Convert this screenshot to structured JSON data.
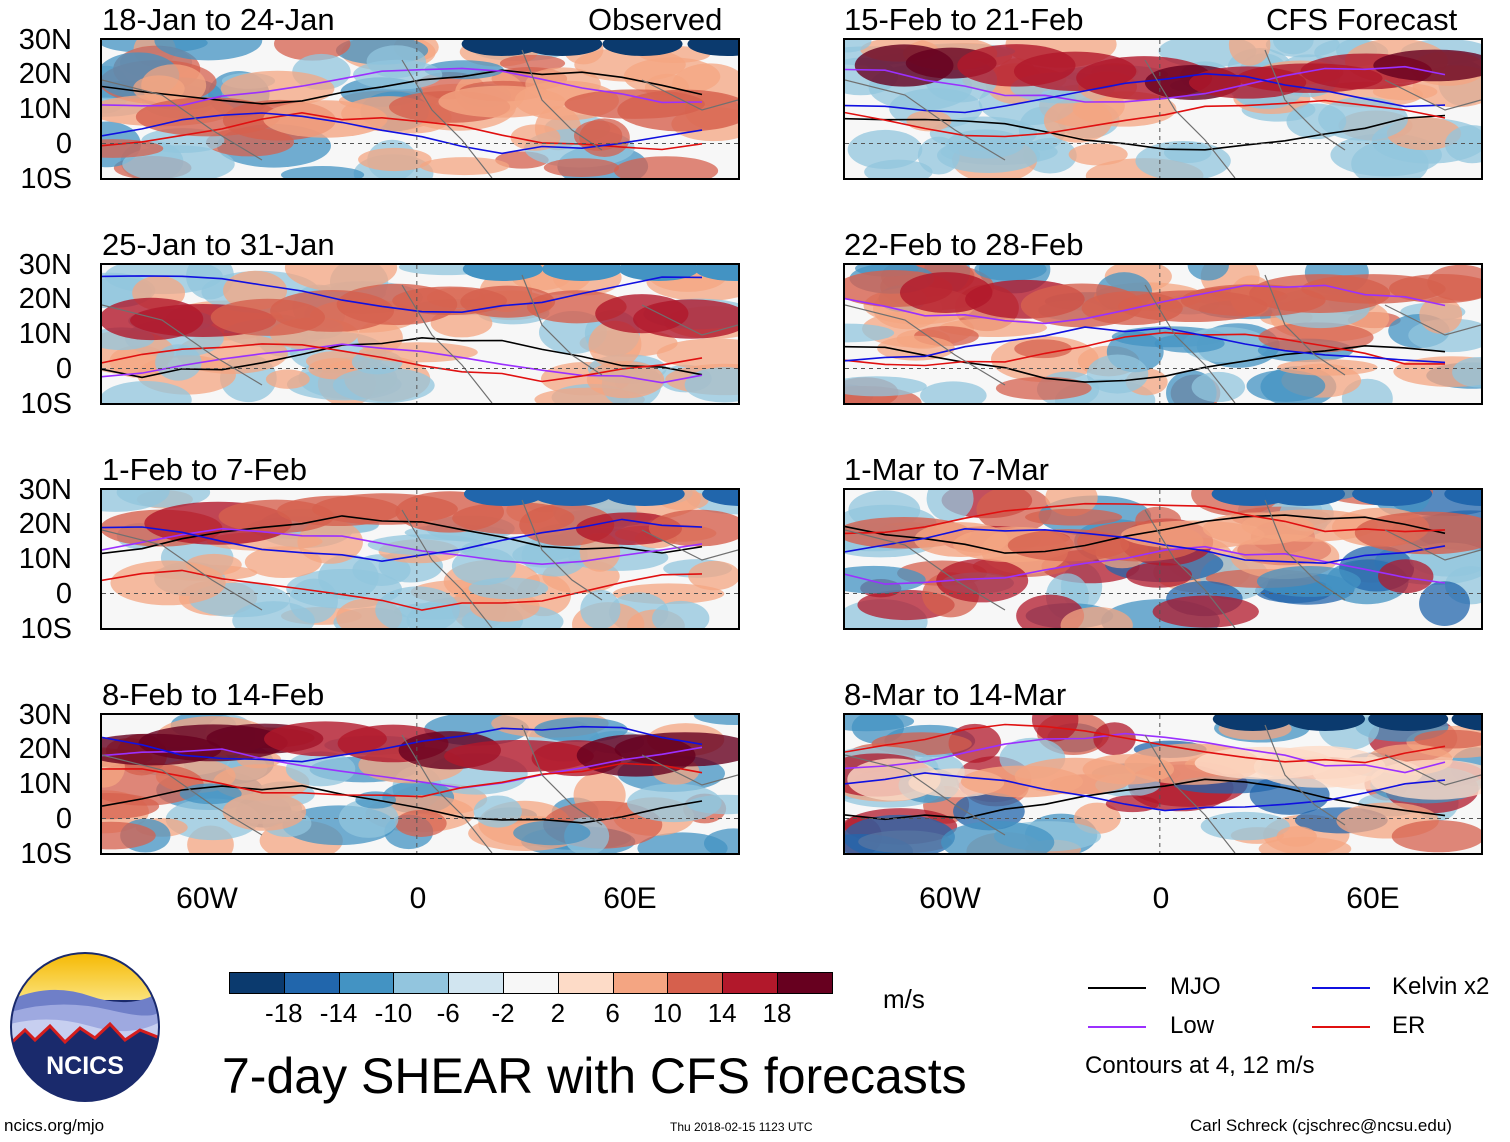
{
  "panels": [
    {
      "title": "18-Jan to 24-Jan",
      "tag": "Observed"
    },
    {
      "title": "25-Jan to 31-Jan",
      "tag": ""
    },
    {
      "title": "1-Feb to 7-Feb",
      "tag": ""
    },
    {
      "title": "8-Feb to 14-Feb",
      "tag": ""
    },
    {
      "title": "15-Feb to 21-Feb",
      "tag": "CFS Forecast"
    },
    {
      "title": "22-Feb to 28-Feb",
      "tag": ""
    },
    {
      "title": "1-Mar to 7-Mar",
      "tag": ""
    },
    {
      "title": "8-Mar to 14-Mar",
      "tag": ""
    }
  ],
  "lat_labels": [
    "30N",
    "20N",
    "10N",
    "0",
    "10S"
  ],
  "lon_labels": [
    "60W",
    "0",
    "60E"
  ],
  "colorbar": {
    "colors": [
      "#0b3a6e",
      "#2166ac",
      "#4393c3",
      "#92c5de",
      "#d1e5f0",
      "#f7f7f7",
      "#fddbc7",
      "#f4a582",
      "#d6604d",
      "#b2182b",
      "#67001f"
    ],
    "labels": [
      "-18",
      "-14",
      "-10",
      "-6",
      "-2",
      "2",
      "6",
      "10",
      "14",
      "18"
    ],
    "units": "m/s"
  },
  "legend": {
    "items": [
      {
        "label": "MJO",
        "color": "#000000"
      },
      {
        "label": "Kelvin x2",
        "color": "#1010e0"
      },
      {
        "label": "Low",
        "color": "#9b30ff"
      },
      {
        "label": "ER",
        "color": "#e01010"
      }
    ],
    "note": "Contours at 4, 12 m/s"
  },
  "main_title": "7-day SHEAR with CFS forecasts",
  "logo_text": "NCICS",
  "footer": {
    "left": "ncics.org/mjo",
    "center": "Thu 2018-02-15 1123 UTC",
    "right": "Carl Schreck (cjschrec@ncsu.edu)"
  }
}
